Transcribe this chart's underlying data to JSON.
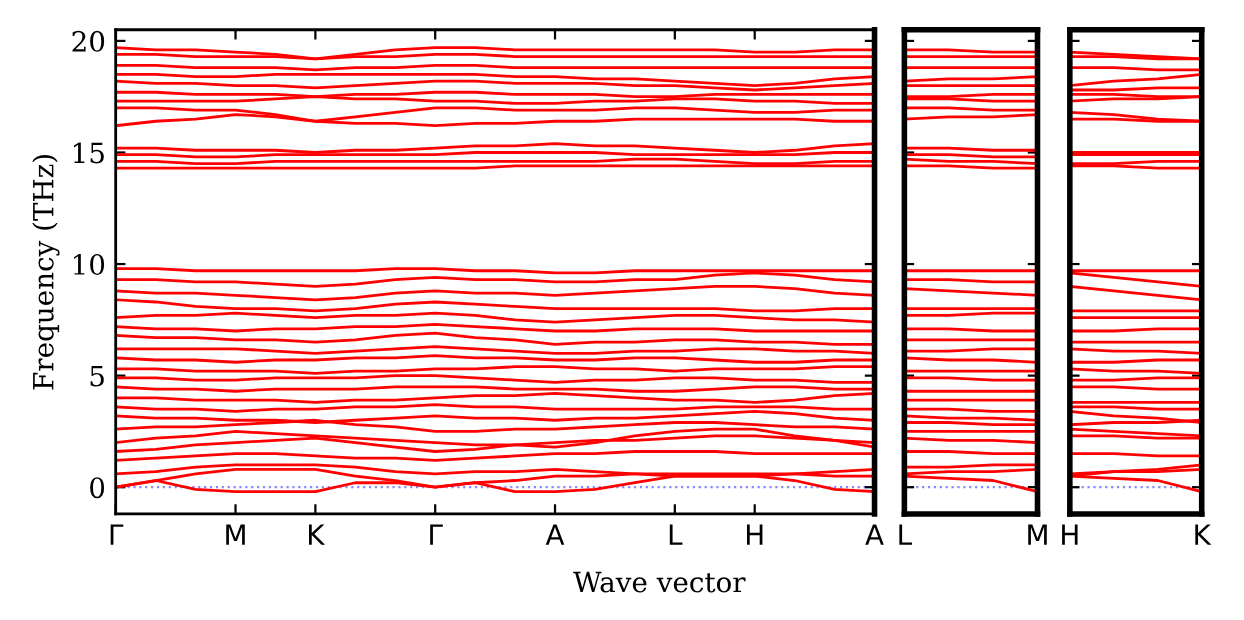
{
  "chart_data": [
    {
      "type": "line",
      "ylabel": "Frequency (THz)",
      "xlabel": "Wave vector",
      "color": "#ff0000",
      "marker": "none",
      "line_style": "solid",
      "grid": false,
      "legend": false,
      "categories": [
        "Γ",
        null,
        null,
        "M",
        null,
        "K",
        null,
        null,
        "Γ",
        null,
        null,
        "A",
        null,
        null,
        "L",
        null,
        "H",
        null,
        null,
        "A"
      ],
      "ylim": [
        -1.2,
        20.5
      ],
      "yticks": [
        0,
        5,
        10,
        15,
        20
      ],
      "ref_lines": [
        {
          "axis": "y",
          "value": 0,
          "color": "#8888ff",
          "line_style": "dotted"
        }
      ],
      "series": [
        {
          "values": [
            0,
            0.3,
            -0.1,
            -0.2,
            -0.2,
            -0.2,
            0.2,
            0.2,
            0,
            0.2,
            -0.2,
            -0.2,
            -0.1,
            0.2,
            0.5,
            0.5,
            0.5,
            0.3,
            -0.1,
            -0.2
          ]
        },
        {
          "values": [
            0,
            0.3,
            0.6,
            0.8,
            0.8,
            0.8,
            0.5,
            0.3,
            0,
            0.2,
            0.3,
            0.5,
            0.5,
            0.6,
            0.6,
            0.6,
            0.6,
            0.6,
            0.5,
            0.5
          ]
        },
        {
          "values": [
            0.6,
            0.7,
            0.9,
            1.0,
            1.0,
            1.0,
            0.9,
            0.7,
            0.6,
            0.7,
            0.7,
            0.8,
            0.7,
            0.6,
            0.5,
            0.5,
            0.5,
            0.6,
            0.7,
            0.8
          ]
        },
        {
          "values": [
            1.2,
            1.3,
            1.4,
            1.5,
            1.5,
            1.4,
            1.3,
            1.3,
            1.2,
            1.3,
            1.4,
            1.5,
            1.5,
            1.6,
            1.6,
            1.6,
            1.5,
            1.5,
            1.5,
            1.5
          ]
        },
        {
          "values": [
            1.6,
            1.7,
            1.9,
            2.0,
            2.1,
            2.2,
            2.0,
            1.8,
            1.6,
            1.7,
            1.9,
            2.0,
            2.1,
            2.1,
            2.2,
            2.3,
            2.3,
            2.2,
            2.1,
            2.0
          ]
        },
        {
          "values": [
            2.0,
            2.2,
            2.3,
            2.5,
            2.4,
            2.3,
            2.2,
            2.1,
            2.0,
            1.9,
            1.9,
            1.8,
            2.0,
            2.3,
            2.5,
            2.6,
            2.6,
            2.3,
            2.1,
            1.8
          ]
        },
        {
          "values": [
            2.6,
            2.7,
            2.7,
            2.8,
            2.9,
            3.0,
            2.8,
            2.7,
            2.5,
            2.5,
            2.6,
            2.6,
            2.7,
            2.8,
            2.9,
            2.9,
            2.8,
            2.7,
            2.7,
            2.6
          ]
        },
        {
          "values": [
            3.2,
            3.1,
            3.1,
            3.0,
            3.0,
            2.9,
            3.0,
            3.1,
            3.2,
            3.1,
            3.1,
            3.0,
            3.1,
            3.1,
            3.2,
            3.3,
            3.4,
            3.3,
            3.1,
            3.0
          ]
        },
        {
          "values": [
            3.6,
            3.5,
            3.5,
            3.4,
            3.5,
            3.5,
            3.6,
            3.6,
            3.7,
            3.6,
            3.6,
            3.5,
            3.5,
            3.5,
            3.5,
            3.6,
            3.6,
            3.6,
            3.5,
            3.5
          ]
        },
        {
          "values": [
            4.0,
            4.0,
            3.9,
            3.9,
            3.9,
            3.8,
            3.9,
            3.9,
            4.0,
            4.1,
            4.1,
            4.2,
            4.1,
            4.0,
            3.9,
            3.9,
            3.8,
            3.9,
            4.1,
            4.2
          ]
        },
        {
          "values": [
            4.5,
            4.4,
            4.4,
            4.3,
            4.4,
            4.4,
            4.4,
            4.5,
            4.5,
            4.5,
            4.4,
            4.4,
            4.4,
            4.3,
            4.3,
            4.4,
            4.5,
            4.5,
            4.4,
            4.4
          ]
        },
        {
          "values": [
            4.9,
            4.9,
            4.8,
            4.8,
            4.9,
            4.9,
            4.9,
            5.0,
            5.0,
            4.9,
            4.8,
            4.7,
            4.8,
            4.8,
            4.9,
            4.9,
            4.8,
            4.8,
            4.7,
            4.7
          ]
        },
        {
          "values": [
            5.3,
            5.3,
            5.2,
            5.2,
            5.2,
            5.1,
            5.2,
            5.2,
            5.3,
            5.3,
            5.4,
            5.4,
            5.3,
            5.3,
            5.2,
            5.3,
            5.3,
            5.3,
            5.4,
            5.4
          ]
        },
        {
          "values": [
            5.8,
            5.7,
            5.7,
            5.6,
            5.7,
            5.7,
            5.8,
            5.8,
            5.9,
            5.8,
            5.8,
            5.7,
            5.7,
            5.8,
            5.8,
            5.7,
            5.6,
            5.6,
            5.7,
            5.7
          ]
        },
        {
          "values": [
            6.2,
            6.2,
            6.2,
            6.2,
            6.1,
            6.0,
            6.1,
            6.2,
            6.3,
            6.2,
            6.1,
            6.0,
            6.0,
            6.1,
            6.1,
            6.2,
            6.2,
            6.1,
            6.1,
            6.0
          ]
        },
        {
          "values": [
            6.8,
            6.7,
            6.7,
            6.6,
            6.6,
            6.5,
            6.6,
            6.8,
            6.9,
            6.7,
            6.6,
            6.4,
            6.5,
            6.5,
            6.6,
            6.6,
            6.5,
            6.5,
            6.4,
            6.4
          ]
        },
        {
          "values": [
            7.2,
            7.1,
            7.1,
            7.0,
            7.1,
            7.1,
            7.2,
            7.2,
            7.3,
            7.2,
            7.1,
            7.0,
            7.0,
            7.1,
            7.1,
            7.1,
            7.0,
            7.0,
            7.0,
            7.0
          ]
        },
        {
          "values": [
            7.6,
            7.7,
            7.7,
            7.8,
            7.7,
            7.6,
            7.7,
            7.7,
            7.8,
            7.7,
            7.5,
            7.4,
            7.5,
            7.6,
            7.7,
            7.7,
            7.6,
            7.5,
            7.5,
            7.4
          ]
        },
        {
          "values": [
            8.4,
            8.3,
            8.1,
            8.0,
            8.0,
            7.9,
            8.0,
            8.2,
            8.3,
            8.2,
            8.1,
            8.0,
            8.0,
            8.0,
            8.0,
            8.0,
            7.9,
            7.9,
            8.0,
            8.0
          ]
        },
        {
          "values": [
            8.8,
            8.7,
            8.7,
            8.6,
            8.5,
            8.4,
            8.5,
            8.7,
            8.8,
            8.7,
            8.7,
            8.6,
            8.7,
            8.8,
            8.9,
            9.0,
            9.0,
            8.9,
            8.7,
            8.6
          ]
        },
        {
          "values": [
            9.3,
            9.3,
            9.2,
            9.2,
            9.1,
            9.0,
            9.1,
            9.3,
            9.4,
            9.3,
            9.3,
            9.2,
            9.2,
            9.3,
            9.3,
            9.5,
            9.6,
            9.5,
            9.3,
            9.2
          ]
        },
        {
          "values": [
            9.8,
            9.8,
            9.7,
            9.7,
            9.7,
            9.7,
            9.7,
            9.8,
            9.8,
            9.7,
            9.7,
            9.6,
            9.6,
            9.7,
            9.7,
            9.7,
            9.7,
            9.7,
            9.7,
            9.7
          ]
        },
        {
          "values": [
            14.3,
            14.3,
            14.3,
            14.3,
            14.3,
            14.3,
            14.3,
            14.3,
            14.3,
            14.3,
            14.4,
            14.4,
            14.4,
            14.4,
            14.4,
            14.4,
            14.4,
            14.4,
            14.4,
            14.4
          ]
        },
        {
          "values": [
            14.6,
            14.6,
            14.5,
            14.5,
            14.6,
            14.6,
            14.6,
            14.6,
            14.6,
            14.6,
            14.6,
            14.6,
            14.6,
            14.7,
            14.7,
            14.6,
            14.5,
            14.5,
            14.6,
            14.6
          ]
        },
        {
          "values": [
            14.9,
            14.9,
            14.8,
            14.8,
            14.9,
            14.9,
            14.9,
            14.9,
            14.9,
            15.0,
            15.0,
            15.0,
            15.0,
            14.9,
            14.9,
            14.9,
            14.9,
            14.9,
            15.0,
            15.0
          ]
        },
        {
          "values": [
            15.2,
            15.2,
            15.1,
            15.1,
            15.1,
            15.0,
            15.1,
            15.1,
            15.2,
            15.3,
            15.3,
            15.4,
            15.3,
            15.3,
            15.2,
            15.1,
            15.0,
            15.1,
            15.3,
            15.4
          ]
        },
        {
          "values": [
            16.2,
            16.4,
            16.5,
            16.7,
            16.6,
            16.4,
            16.3,
            16.3,
            16.2,
            16.3,
            16.3,
            16.4,
            16.4,
            16.5,
            16.5,
            16.5,
            16.5,
            16.5,
            16.4,
            16.4
          ]
        },
        {
          "values": [
            17.0,
            17.0,
            16.9,
            16.9,
            16.7,
            16.4,
            16.6,
            16.8,
            17.0,
            17.0,
            16.9,
            16.9,
            16.9,
            17.0,
            17.0,
            16.9,
            16.8,
            16.8,
            16.9,
            16.9
          ]
        },
        {
          "values": [
            17.3,
            17.3,
            17.3,
            17.3,
            17.4,
            17.5,
            17.4,
            17.4,
            17.3,
            17.3,
            17.2,
            17.2,
            17.3,
            17.3,
            17.4,
            17.4,
            17.3,
            17.3,
            17.2,
            17.2
          ]
        },
        {
          "values": [
            17.7,
            17.7,
            17.6,
            17.6,
            17.6,
            17.5,
            17.6,
            17.6,
            17.7,
            17.7,
            17.6,
            17.6,
            17.6,
            17.5,
            17.5,
            17.6,
            17.6,
            17.6,
            17.6,
            17.6
          ]
        },
        {
          "values": [
            18.2,
            18.1,
            18.1,
            18.0,
            18.0,
            17.9,
            18.0,
            18.1,
            18.2,
            18.2,
            18.1,
            18.1,
            18.1,
            18.0,
            18.0,
            17.9,
            17.8,
            17.9,
            18.0,
            18.1
          ]
        },
        {
          "values": [
            18.5,
            18.5,
            18.4,
            18.4,
            18.5,
            18.5,
            18.5,
            18.5,
            18.5,
            18.5,
            18.4,
            18.4,
            18.3,
            18.3,
            18.2,
            18.1,
            18.0,
            18.1,
            18.3,
            18.4
          ]
        },
        {
          "values": [
            18.9,
            18.9,
            18.8,
            18.8,
            18.8,
            18.7,
            18.8,
            18.8,
            18.9,
            18.9,
            18.8,
            18.8,
            18.8,
            18.8,
            18.8,
            18.8,
            18.8,
            18.8,
            18.8,
            18.8
          ]
        },
        {
          "values": [
            19.4,
            19.4,
            19.3,
            19.3,
            19.3,
            19.2,
            19.3,
            19.3,
            19.4,
            19.4,
            19.3,
            19.3,
            19.3,
            19.3,
            19.3,
            19.3,
            19.3,
            19.3,
            19.3,
            19.3
          ]
        },
        {
          "values": [
            19.7,
            19.6,
            19.6,
            19.5,
            19.4,
            19.2,
            19.4,
            19.6,
            19.7,
            19.7,
            19.6,
            19.6,
            19.6,
            19.6,
            19.6,
            19.6,
            19.5,
            19.5,
            19.6,
            19.6
          ]
        }
      ]
    },
    {
      "type": "line",
      "color": "#ff0000",
      "marker": "none",
      "line_style": "solid",
      "grid": false,
      "legend": false,
      "tick_labels": "x",
      "categories": [
        "L",
        null,
        null,
        "M"
      ],
      "ylim": [
        -1.2,
        20.5
      ],
      "yticks": [
        0,
        5,
        10,
        15,
        20
      ],
      "ref_lines": [
        {
          "axis": "y",
          "value": 0,
          "color": "#8888ff",
          "line_style": "dotted"
        }
      ],
      "series": [
        {
          "values": [
            0.5,
            0.4,
            0.3,
            -0.2
          ]
        },
        {
          "values": [
            0.6,
            0.7,
            0.7,
            0.8
          ]
        },
        {
          "values": [
            0.9,
            0.9,
            1.0,
            1.0
          ]
        },
        {
          "values": [
            1.6,
            1.6,
            1.5,
            1.5
          ]
        },
        {
          "values": [
            2.2,
            2.1,
            2.1,
            2.0
          ]
        },
        {
          "values": [
            2.5,
            2.5,
            2.5,
            2.5
          ]
        },
        {
          "values": [
            2.9,
            2.9,
            2.8,
            2.8
          ]
        },
        {
          "values": [
            3.2,
            3.1,
            3.1,
            3.0
          ]
        },
        {
          "values": [
            3.5,
            3.5,
            3.4,
            3.4
          ]
        },
        {
          "values": [
            3.9,
            3.9,
            3.9,
            3.9
          ]
        },
        {
          "values": [
            4.3,
            4.3,
            4.3,
            4.3
          ]
        },
        {
          "values": [
            4.9,
            4.9,
            4.8,
            4.8
          ]
        },
        {
          "values": [
            5.2,
            5.2,
            5.2,
            5.2
          ]
        },
        {
          "values": [
            5.8,
            5.7,
            5.7,
            5.6
          ]
        },
        {
          "values": [
            6.1,
            6.1,
            6.2,
            6.2
          ]
        },
        {
          "values": [
            6.6,
            6.6,
            6.6,
            6.6
          ]
        },
        {
          "values": [
            7.1,
            7.1,
            7.0,
            7.0
          ]
        },
        {
          "values": [
            7.7,
            7.7,
            7.8,
            7.8
          ]
        },
        {
          "values": [
            8.0,
            8.0,
            8.0,
            8.0
          ]
        },
        {
          "values": [
            8.9,
            8.8,
            8.7,
            8.6
          ]
        },
        {
          "values": [
            9.3,
            9.3,
            9.2,
            9.2
          ]
        },
        {
          "values": [
            9.7,
            9.7,
            9.7,
            9.7
          ]
        },
        {
          "values": [
            14.4,
            14.4,
            14.3,
            14.3
          ]
        },
        {
          "values": [
            14.7,
            14.6,
            14.6,
            14.5
          ]
        },
        {
          "values": [
            14.9,
            14.9,
            14.8,
            14.8
          ]
        },
        {
          "values": [
            15.2,
            15.2,
            15.1,
            15.1
          ]
        },
        {
          "values": [
            16.5,
            16.6,
            16.6,
            16.7
          ]
        },
        {
          "values": [
            17.0,
            17.0,
            16.9,
            16.9
          ]
        },
        {
          "values": [
            17.4,
            17.4,
            17.3,
            17.3
          ]
        },
        {
          "values": [
            17.5,
            17.5,
            17.6,
            17.6
          ]
        },
        {
          "values": [
            18.0,
            18.0,
            18.0,
            18.0
          ]
        },
        {
          "values": [
            18.2,
            18.3,
            18.3,
            18.4
          ]
        },
        {
          "values": [
            18.8,
            18.8,
            18.8,
            18.8
          ]
        },
        {
          "values": [
            19.3,
            19.3,
            19.3,
            19.3
          ]
        },
        {
          "values": [
            19.6,
            19.6,
            19.5,
            19.5
          ]
        }
      ]
    },
    {
      "type": "line",
      "color": "#ff0000",
      "marker": "none",
      "line_style": "solid",
      "grid": false,
      "legend": false,
      "tick_labels": "x",
      "categories": [
        "H",
        null,
        null,
        "K"
      ],
      "ylim": [
        -1.2,
        20.5
      ],
      "yticks": [
        0,
        5,
        10,
        15,
        20
      ],
      "ref_lines": [
        {
          "axis": "y",
          "value": 0,
          "color": "#8888ff",
          "line_style": "dotted"
        }
      ],
      "series": [
        {
          "values": [
            0.5,
            0.4,
            0.3,
            -0.2
          ]
        },
        {
          "values": [
            0.6,
            0.7,
            0.7,
            0.8
          ]
        },
        {
          "values": [
            0.5,
            0.7,
            0.8,
            1.0
          ]
        },
        {
          "values": [
            1.5,
            1.5,
            1.4,
            1.4
          ]
        },
        {
          "values": [
            2.3,
            2.3,
            2.2,
            2.2
          ]
        },
        {
          "values": [
            2.6,
            2.5,
            2.4,
            2.3
          ]
        },
        {
          "values": [
            2.8,
            2.9,
            2.9,
            3.0
          ]
        },
        {
          "values": [
            3.4,
            3.2,
            3.1,
            2.9
          ]
        },
        {
          "values": [
            3.6,
            3.6,
            3.5,
            3.5
          ]
        },
        {
          "values": [
            3.8,
            3.8,
            3.8,
            3.8
          ]
        },
        {
          "values": [
            4.5,
            4.5,
            4.4,
            4.4
          ]
        },
        {
          "values": [
            4.8,
            4.8,
            4.9,
            4.9
          ]
        },
        {
          "values": [
            5.3,
            5.2,
            5.2,
            5.1
          ]
        },
        {
          "values": [
            5.6,
            5.6,
            5.7,
            5.7
          ]
        },
        {
          "values": [
            6.2,
            6.1,
            6.1,
            6.0
          ]
        },
        {
          "values": [
            6.5,
            6.5,
            6.5,
            6.5
          ]
        },
        {
          "values": [
            7.0,
            7.0,
            7.1,
            7.1
          ]
        },
        {
          "values": [
            7.6,
            7.6,
            7.6,
            7.6
          ]
        },
        {
          "values": [
            7.9,
            7.9,
            7.9,
            7.9
          ]
        },
        {
          "values": [
            9.0,
            8.8,
            8.6,
            8.4
          ]
        },
        {
          "values": [
            9.6,
            9.4,
            9.2,
            9.0
          ]
        },
        {
          "values": [
            9.7,
            9.7,
            9.7,
            9.7
          ]
        },
        {
          "values": [
            14.4,
            14.4,
            14.3,
            14.3
          ]
        },
        {
          "values": [
            14.5,
            14.5,
            14.6,
            14.6
          ]
        },
        {
          "values": [
            14.9,
            14.9,
            14.9,
            14.9
          ]
        },
        {
          "values": [
            15.0,
            15.0,
            15.0,
            15.0
          ]
        },
        {
          "values": [
            16.5,
            16.5,
            16.4,
            16.4
          ]
        },
        {
          "values": [
            16.8,
            16.7,
            16.5,
            16.4
          ]
        },
        {
          "values": [
            17.3,
            17.4,
            17.4,
            17.5
          ]
        },
        {
          "values": [
            17.6,
            17.6,
            17.5,
            17.5
          ]
        },
        {
          "values": [
            17.8,
            17.8,
            17.9,
            17.9
          ]
        },
        {
          "values": [
            18.0,
            18.2,
            18.3,
            18.5
          ]
        },
        {
          "values": [
            18.8,
            18.8,
            18.7,
            18.7
          ]
        },
        {
          "values": [
            19.3,
            19.3,
            19.2,
            19.2
          ]
        },
        {
          "values": [
            19.5,
            19.4,
            19.3,
            19.2
          ]
        }
      ]
    }
  ]
}
